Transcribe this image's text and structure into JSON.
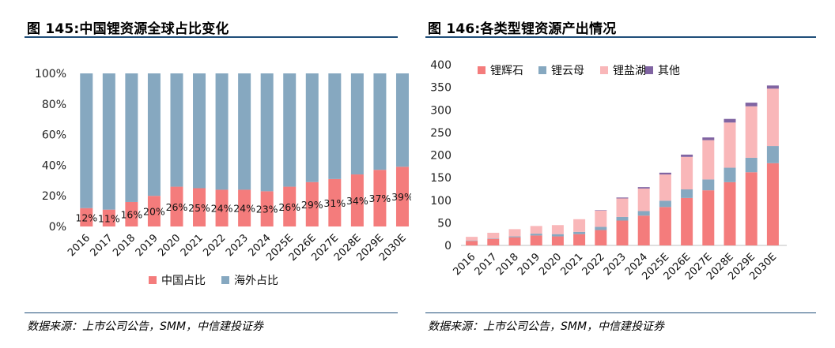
{
  "left_figure": {
    "title": "图 145:中国锂资源全球占比变化",
    "source": "数据来源：上市公司公告，SMM，中信建投证券"
  },
  "right_figure": {
    "title": "图 146:各类型锂资源产出情况",
    "source": "数据来源：上市公司公告，SMM，中信建投证券"
  },
  "colors": {
    "china": "#f47c7c",
    "overseas": "#86a8c0",
    "spodumene": "#f47c7c",
    "lepidolite": "#86a8c0",
    "brine": "#f9b7b9",
    "other": "#8064a2",
    "rule": "#1f4e79"
  },
  "chart_data": [
    {
      "type": "bar",
      "stacked": true,
      "title": "图 145:中国锂资源全球占比变化",
      "categories": [
        "2016",
        "2017",
        "2018",
        "2019",
        "2020",
        "2021",
        "2022",
        "2023",
        "2024",
        "2025E",
        "2026E",
        "2027E",
        "2028E",
        "2029E",
        "2030E"
      ],
      "series": [
        {
          "name": "中国占比",
          "values": [
            12,
            11,
            16,
            20,
            26,
            25,
            24,
            24,
            23,
            26,
            29,
            31,
            34,
            37,
            39
          ]
        },
        {
          "name": "海外占比",
          "values": [
            88,
            89,
            84,
            80,
            74,
            75,
            76,
            76,
            77,
            74,
            71,
            69,
            66,
            63,
            61
          ]
        }
      ],
      "data_labels": [
        "12%",
        "11%",
        "16%",
        "20%",
        "26%",
        "25%",
        "24%",
        "24%",
        "23%",
        "26%",
        "29%",
        "31%",
        "34%",
        "37%",
        "39%"
      ],
      "yticks": [
        "0%",
        "20%",
        "40%",
        "60%",
        "80%",
        "100%"
      ],
      "ylim": [
        0,
        100
      ],
      "legend": [
        "中国占比",
        "海外占比"
      ],
      "legend_position": "bottom"
    },
    {
      "type": "bar",
      "stacked": true,
      "title": "图 146:各类型锂资源产出情况",
      "categories": [
        "2016",
        "2017",
        "2018",
        "2019",
        "2020",
        "2021",
        "2022",
        "2023",
        "2024",
        "2025E",
        "2026E",
        "2027E",
        "2028E",
        "2029E",
        "2030E"
      ],
      "series": [
        {
          "name": "锂辉石",
          "values": [
            10,
            14,
            18,
            22,
            20,
            25,
            34,
            55,
            66,
            85,
            105,
            122,
            140,
            162,
            182
          ]
        },
        {
          "name": "锂云母",
          "values": [
            1,
            1,
            2,
            4,
            5,
            5,
            7,
            8,
            10,
            14,
            19,
            24,
            32,
            32,
            38
          ]
        },
        {
          "name": "锂盐湖",
          "values": [
            8,
            13,
            16,
            17,
            20,
            28,
            36,
            41,
            50,
            58,
            72,
            87,
            100,
            114,
            127
          ]
        },
        {
          "name": "其他",
          "values": [
            0,
            0,
            0,
            0,
            0,
            0,
            1,
            2,
            3,
            4,
            5,
            6,
            8,
            8,
            7
          ]
        }
      ],
      "yticks": [
        "0",
        "50",
        "100",
        "150",
        "200",
        "250",
        "300",
        "350",
        "400"
      ],
      "ylim": [
        0,
        400
      ],
      "legend": [
        "锂辉石",
        "锂云母",
        "锂盐湖",
        "其他"
      ],
      "legend_position": "top-left"
    }
  ]
}
